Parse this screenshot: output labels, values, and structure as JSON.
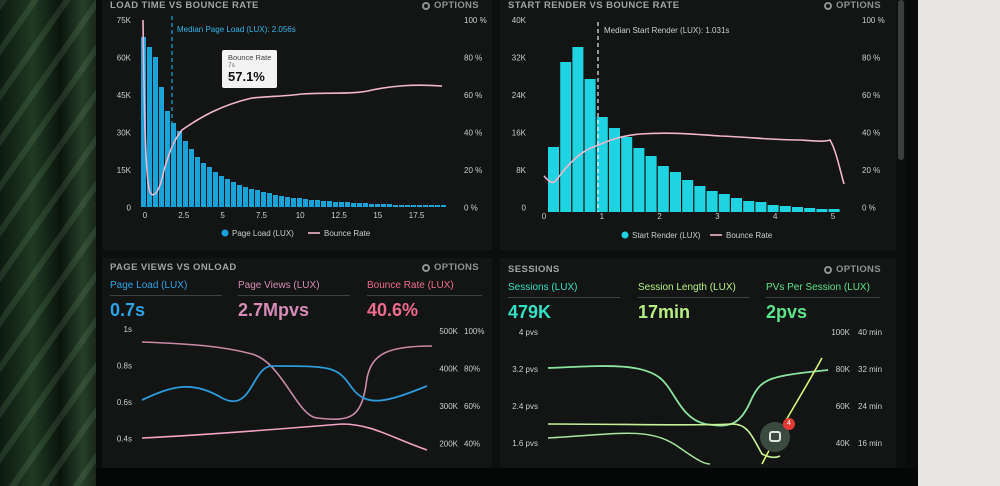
{
  "colors": {
    "bar_blue": "#1aa3d9",
    "bar_cyan": "#20d3e0",
    "bounce_pink": "#f0b6cf",
    "metric_blue": "#2ea3e6",
    "metric_pink": "#d48cb6",
    "metric_red": "#f06a8d",
    "metric_teal": "#34e0c2",
    "metric_lime": "#b8ee86",
    "metric_green": "#5de38a"
  },
  "options_label": "OPTIONS",
  "load_time": {
    "title": "LOAD TIME VS BOUNCE RATE",
    "median_label": "Median Page Load (LUX): 2.056s",
    "y_left_ticks": [
      "75K",
      "60K",
      "45K",
      "30K",
      "15K",
      "0"
    ],
    "y_right_ticks": [
      "100 %",
      "80 %",
      "60 %",
      "40 %",
      "20 %",
      "0 %"
    ],
    "x_ticks": [
      "0",
      "2.5",
      "5",
      "7.5",
      "10",
      "12.5",
      "15",
      "17.5"
    ],
    "legend": {
      "bars": "Page Load (LUX)",
      "line": "Bounce Rate"
    },
    "tooltip": {
      "title": "Bounce Rate",
      "sub": "7s",
      "value": "57.1%"
    }
  },
  "start_render": {
    "title": "START RENDER VS BOUNCE RATE",
    "median_label": "Median Start Render (LUX): 1.031s",
    "y_left_ticks": [
      "40K",
      "32K",
      "24K",
      "16K",
      "8K",
      "0"
    ],
    "y_right_ticks": [
      "100 %",
      "80 %",
      "60 %",
      "40 %",
      "20 %",
      "0 %"
    ],
    "x_ticks": [
      "0",
      "1",
      "2",
      "3",
      "4",
      "5"
    ],
    "legend": {
      "bars": "Start Render (LUX)",
      "line": "Bounce Rate"
    }
  },
  "page_views": {
    "title": "PAGE VIEWS VS ONLOAD",
    "metrics": [
      {
        "label": "Page Load (LUX)",
        "value": "0.7s"
      },
      {
        "label": "Page Views (LUX)",
        "value": "2.7Mpvs"
      },
      {
        "label": "Bounce Rate (LUX)",
        "value": "40.6%"
      }
    ],
    "y_left_ticks": [
      "1s",
      "0.8s",
      "0.6s",
      "0.4s"
    ],
    "y_right1_ticks": [
      "500K",
      "400K",
      "300K",
      "200K"
    ],
    "y_right2_ticks": [
      "100%",
      "80%",
      "60%",
      "40%"
    ]
  },
  "sessions": {
    "title": "SESSIONS",
    "metrics": [
      {
        "label": "Sessions (LUX)",
        "value": "479K"
      },
      {
        "label": "Session Length (LUX)",
        "value": "17min"
      },
      {
        "label": "PVs Per Session (LUX)",
        "value": "2pvs"
      }
    ],
    "y_left_ticks": [
      "4 pvs",
      "3.2 pvs",
      "2.4 pvs",
      "1.6 pvs"
    ],
    "y_right1_ticks": [
      "100K",
      "80K",
      "60K",
      "40K"
    ],
    "y_right2_ticks": [
      "40 min",
      "32 min",
      "24 min",
      "16 min"
    ]
  },
  "chat_badge": "4"
}
